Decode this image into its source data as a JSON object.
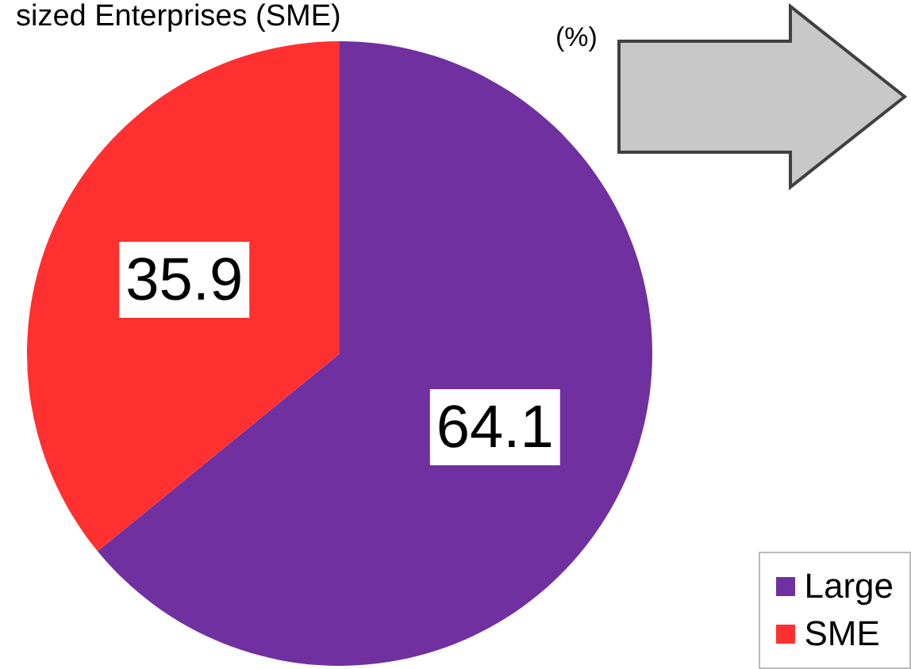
{
  "chart_data": {
    "type": "pie",
    "title": "sized Enterprises (SME)",
    "subtitle": "(%)",
    "categories": [
      "Large",
      "SME"
    ],
    "values": [
      64.1,
      35.9
    ],
    "colors": [
      "#7030a0",
      "#ff3030"
    ],
    "data_labels": true,
    "legend": "bottom right"
  }
}
